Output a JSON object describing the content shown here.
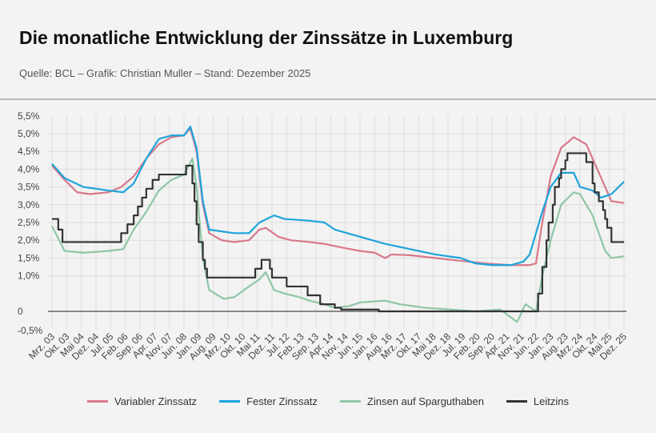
{
  "title": "Die monatliche Entwicklung der Zinssätze in Luxemburg",
  "subtitle": "Quelle: BCL – Grafik: Christian Muller – Stand: Dezember 2025",
  "chart_data": {
    "type": "line",
    "ylim": [
      -0.5,
      5.5
    ],
    "yticks": [
      5.5,
      5.0,
      4.5,
      4.0,
      3.5,
      3.0,
      2.5,
      2.0,
      1.5,
      1.0,
      0,
      -0.5
    ],
    "ytick_labels": [
      "5,5%",
      "5,0%",
      "4,5%",
      "4,0%",
      "3,5%",
      "3,0%",
      "2,5%",
      "2,0%",
      "1,5%",
      "1,0%",
      "0",
      "-0,5%"
    ],
    "xrange": [
      "2003-03",
      "2025-12"
    ],
    "xtick_labels": [
      "Mrz. 03",
      "Okt. 03",
      "Mai 04",
      "Dez. 04",
      "Jul. 05",
      "Feb. 06",
      "Sep. 06",
      "Apr. 07",
      "Nov. 07",
      "Jun. 08",
      "Jan. 09",
      "Aug. 09",
      "Mrz. 10",
      "Okt. 10",
      "Mai 11",
      "Dez. 11",
      "Jul. 12",
      "Feb. 13",
      "Sep. 13",
      "Apr. 14",
      "Nov. 14",
      "Jun. 15",
      "Jan. 16",
      "Aug. 16",
      "Mrz. 17",
      "Okt. 17",
      "Mai 18",
      "Dez. 18",
      "Jul. 19",
      "Feb. 20",
      "Sep. 20",
      "Apr. 21",
      "Nov. 21",
      "Jun. 22",
      "Jan. 23",
      "Aug. 23",
      "Mrz. 24",
      "Okt. 24",
      "Mai 25",
      "Dez. 25"
    ],
    "grid": true,
    "legend_position": "bottom",
    "series": [
      {
        "name": "Variabler Zinssatz",
        "color": "#d9788b",
        "step": false,
        "points": [
          [
            "2003-03",
            4.1
          ],
          [
            "2003-09",
            3.7
          ],
          [
            "2004-03",
            3.35
          ],
          [
            "2004-09",
            3.3
          ],
          [
            "2005-06",
            3.35
          ],
          [
            "2005-12",
            3.5
          ],
          [
            "2006-06",
            3.8
          ],
          [
            "2006-12",
            4.3
          ],
          [
            "2007-06",
            4.7
          ],
          [
            "2007-12",
            4.9
          ],
          [
            "2008-06",
            4.95
          ],
          [
            "2008-09",
            5.15
          ],
          [
            "2008-12",
            4.5
          ],
          [
            "2009-03",
            3.0
          ],
          [
            "2009-06",
            2.2
          ],
          [
            "2009-12",
            2.0
          ],
          [
            "2010-06",
            1.95
          ],
          [
            "2011-01",
            2.0
          ],
          [
            "2011-06",
            2.3
          ],
          [
            "2011-09",
            2.35
          ],
          [
            "2012-03",
            2.1
          ],
          [
            "2012-09",
            2.0
          ],
          [
            "2013-06",
            1.95
          ],
          [
            "2014-01",
            1.9
          ],
          [
            "2014-09",
            1.8
          ],
          [
            "2015-06",
            1.7
          ],
          [
            "2016-01",
            1.65
          ],
          [
            "2016-06",
            1.5
          ],
          [
            "2016-09",
            1.6
          ],
          [
            "2017-06",
            1.58
          ],
          [
            "2018-06",
            1.5
          ],
          [
            "2019-06",
            1.42
          ],
          [
            "2020-06",
            1.35
          ],
          [
            "2021-06",
            1.3
          ],
          [
            "2022-03",
            1.3
          ],
          [
            "2022-06",
            1.35
          ],
          [
            "2022-09",
            2.5
          ],
          [
            "2023-01",
            3.8
          ],
          [
            "2023-06",
            4.6
          ],
          [
            "2023-12",
            4.9
          ],
          [
            "2024-06",
            4.7
          ],
          [
            "2024-12",
            3.9
          ],
          [
            "2025-06",
            3.1
          ],
          [
            "2025-12",
            3.05
          ]
        ]
      },
      {
        "name": "Fester Zinssatz",
        "color": "#1ea4db",
        "step": false,
        "points": [
          [
            "2003-03",
            4.15
          ],
          [
            "2003-09",
            3.75
          ],
          [
            "2004-06",
            3.5
          ],
          [
            "2005-06",
            3.4
          ],
          [
            "2006-01",
            3.35
          ],
          [
            "2006-06",
            3.6
          ],
          [
            "2006-12",
            4.3
          ],
          [
            "2007-06",
            4.85
          ],
          [
            "2007-12",
            4.95
          ],
          [
            "2008-06",
            4.95
          ],
          [
            "2008-09",
            5.2
          ],
          [
            "2008-12",
            4.6
          ],
          [
            "2009-03",
            3.1
          ],
          [
            "2009-06",
            2.3
          ],
          [
            "2010-06",
            2.2
          ],
          [
            "2011-01",
            2.2
          ],
          [
            "2011-06",
            2.5
          ],
          [
            "2012-01",
            2.7
          ],
          [
            "2012-06",
            2.6
          ],
          [
            "2013-06",
            2.55
          ],
          [
            "2014-01",
            2.5
          ],
          [
            "2014-06",
            2.3
          ],
          [
            "2015-06",
            2.1
          ],
          [
            "2016-06",
            1.9
          ],
          [
            "2017-06",
            1.75
          ],
          [
            "2018-06",
            1.6
          ],
          [
            "2019-06",
            1.5
          ],
          [
            "2020-01",
            1.35
          ],
          [
            "2020-09",
            1.3
          ],
          [
            "2021-06",
            1.3
          ],
          [
            "2021-12",
            1.4
          ],
          [
            "2022-03",
            1.6
          ],
          [
            "2022-09",
            2.8
          ],
          [
            "2023-01",
            3.5
          ],
          [
            "2023-06",
            3.9
          ],
          [
            "2023-12",
            3.9
          ],
          [
            "2024-03",
            3.5
          ],
          [
            "2024-09",
            3.4
          ],
          [
            "2025-01",
            3.2
          ],
          [
            "2025-06",
            3.3
          ],
          [
            "2025-12",
            3.65
          ]
        ]
      },
      {
        "name": "Zinsen auf Sparguthaben",
        "color": "#8fc6a6",
        "step": false,
        "points": [
          [
            "2003-03",
            2.4
          ],
          [
            "2003-09",
            1.7
          ],
          [
            "2004-06",
            1.65
          ],
          [
            "2005-06",
            1.7
          ],
          [
            "2006-01",
            1.75
          ],
          [
            "2006-06",
            2.3
          ],
          [
            "2006-12",
            2.8
          ],
          [
            "2007-06",
            3.4
          ],
          [
            "2007-12",
            3.7
          ],
          [
            "2008-06",
            3.85
          ],
          [
            "2008-10",
            4.3
          ],
          [
            "2008-12",
            3.5
          ],
          [
            "2009-03",
            1.5
          ],
          [
            "2009-06",
            0.6
          ],
          [
            "2010-01",
            0.35
          ],
          [
            "2010-06",
            0.4
          ],
          [
            "2011-01",
            0.7
          ],
          [
            "2011-06",
            0.9
          ],
          [
            "2011-09",
            1.1
          ],
          [
            "2012-01",
            0.6
          ],
          [
            "2012-06",
            0.5
          ],
          [
            "2013-01",
            0.4
          ],
          [
            "2013-06",
            0.3
          ],
          [
            "2014-01",
            0.2
          ],
          [
            "2014-06",
            0.1
          ],
          [
            "2015-01",
            0.15
          ],
          [
            "2015-06",
            0.25
          ],
          [
            "2016-06",
            0.3
          ],
          [
            "2017-01",
            0.2
          ],
          [
            "2018-01",
            0.1
          ],
          [
            "2019-01",
            0.05
          ],
          [
            "2020-01",
            0.0
          ],
          [
            "2021-01",
            0.05
          ],
          [
            "2021-09",
            -0.3
          ],
          [
            "2022-01",
            0.2
          ],
          [
            "2022-06",
            0.0
          ],
          [
            "2022-09",
            1.0
          ],
          [
            "2023-01",
            2.0
          ],
          [
            "2023-06",
            3.0
          ],
          [
            "2023-12",
            3.35
          ],
          [
            "2024-03",
            3.3
          ],
          [
            "2024-09",
            2.7
          ],
          [
            "2025-03",
            1.7
          ],
          [
            "2025-06",
            1.5
          ],
          [
            "2025-12",
            1.55
          ]
        ]
      },
      {
        "name": "Leitzins",
        "color": "#333333",
        "step": true,
        "points": [
          [
            "2003-03",
            2.6
          ],
          [
            "2003-06",
            2.3
          ],
          [
            "2003-08",
            1.95
          ],
          [
            "2005-12",
            2.2
          ],
          [
            "2006-03",
            2.45
          ],
          [
            "2006-06",
            2.7
          ],
          [
            "2006-08",
            2.95
          ],
          [
            "2006-10",
            3.2
          ],
          [
            "2006-12",
            3.45
          ],
          [
            "2007-03",
            3.7
          ],
          [
            "2007-06",
            3.85
          ],
          [
            "2008-07",
            4.1
          ],
          [
            "2008-10",
            3.6
          ],
          [
            "2008-11",
            3.1
          ],
          [
            "2008-12",
            2.45
          ],
          [
            "2009-01",
            1.95
          ],
          [
            "2009-03",
            1.45
          ],
          [
            "2009-04",
            1.2
          ],
          [
            "2009-05",
            0.95
          ],
          [
            "2011-04",
            1.2
          ],
          [
            "2011-07",
            1.45
          ],
          [
            "2011-11",
            1.2
          ],
          [
            "2011-12",
            0.95
          ],
          [
            "2012-07",
            0.7
          ],
          [
            "2013-05",
            0.45
          ],
          [
            "2013-11",
            0.2
          ],
          [
            "2014-06",
            0.1
          ],
          [
            "2014-09",
            0.05
          ],
          [
            "2016-03",
            0.0
          ],
          [
            "2022-07",
            0.5
          ],
          [
            "2022-09",
            1.25
          ],
          [
            "2022-11",
            2.0
          ],
          [
            "2022-12",
            2.5
          ],
          [
            "2023-02",
            3.0
          ],
          [
            "2023-03",
            3.5
          ],
          [
            "2023-05",
            3.75
          ],
          [
            "2023-06",
            4.0
          ],
          [
            "2023-08",
            4.25
          ],
          [
            "2023-09",
            4.45
          ],
          [
            "2024-06",
            4.2
          ],
          [
            "2024-09",
            3.6
          ],
          [
            "2024-10",
            3.35
          ],
          [
            "2024-12",
            3.1
          ],
          [
            "2025-02",
            2.85
          ],
          [
            "2025-03",
            2.6
          ],
          [
            "2025-04",
            2.35
          ],
          [
            "2025-06",
            1.95
          ],
          [
            "2025-12",
            1.95
          ]
        ]
      }
    ]
  }
}
